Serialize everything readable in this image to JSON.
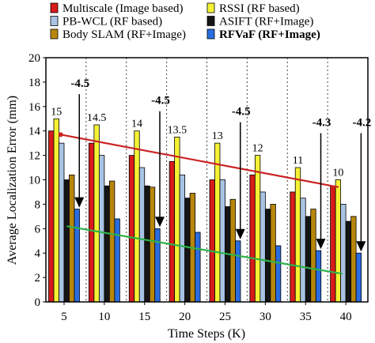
{
  "chart_data": {
    "type": "bar",
    "xlabel": "Time Steps (K)",
    "ylabel": "Average Localization Error (mm)",
    "ylim": [
      0,
      20
    ],
    "yticks": [
      0,
      2,
      4,
      6,
      8,
      10,
      12,
      14,
      16,
      18,
      20
    ],
    "categories": [
      "5",
      "10",
      "15",
      "20",
      "25",
      "30",
      "35",
      "40"
    ],
    "grid": "vertical dashed",
    "legend_position": "top",
    "series": [
      {
        "name": "Multiscale (Image based)",
        "color": "#d81b1b",
        "bold": false,
        "values": [
          14,
          13,
          12,
          11.5,
          10,
          10.4,
          9,
          9.5
        ]
      },
      {
        "name": "RSSI (RF based)",
        "color": "#f5f234",
        "bold": false,
        "values": [
          15,
          14.5,
          14,
          13.5,
          13,
          12,
          11,
          10
        ]
      },
      {
        "name": "PB-WCL (RF based)",
        "color": "#a9c3e3",
        "bold": false,
        "values": [
          13,
          12,
          11,
          10.4,
          10,
          9,
          8.5,
          8
        ]
      },
      {
        "name": "ASIFT (RF+Image)",
        "color": "#151515",
        "bold": false,
        "values": [
          10,
          9.5,
          9.5,
          8.5,
          7.8,
          7.6,
          7,
          6.6
        ]
      },
      {
        "name": "Body SLAM (RF+Image)",
        "color": "#b8860b",
        "bold": false,
        "values": [
          10.4,
          9.9,
          9.4,
          8.9,
          8.4,
          8,
          7.6,
          7
        ]
      },
      {
        "name": "RFVaF (RF+Image)",
        "color": "#2a6de0",
        "bold": true,
        "values": [
          7.6,
          6.8,
          6,
          5.7,
          5,
          4.6,
          4.2,
          4
        ]
      }
    ],
    "top_labels": [
      "15",
      "14.5",
      "14",
      "13.5",
      "13",
      "12",
      "11",
      "10"
    ],
    "improvement_annotations": [
      {
        "category": "5",
        "text": "-4.5",
        "y": 17.6
      },
      {
        "category": "15",
        "text": "-4.5",
        "y": 16.2
      },
      {
        "category": "25",
        "text": "-4.5",
        "y": 15.3
      },
      {
        "category": "35",
        "text": "-4.3",
        "y": 14.4
      },
      {
        "category": "40",
        "text": "-4.2",
        "y": 14.4
      }
    ],
    "trend_lines": [
      {
        "name": "red",
        "color": "#cc2222",
        "points": [
          [
            0.3,
            13.7
          ],
          [
            7.2,
            9.4
          ]
        ]
      },
      {
        "name": "green",
        "color": "#2fb24a",
        "points": [
          [
            0.45,
            6.2
          ],
          [
            7.3,
            2.3
          ]
        ]
      }
    ]
  }
}
